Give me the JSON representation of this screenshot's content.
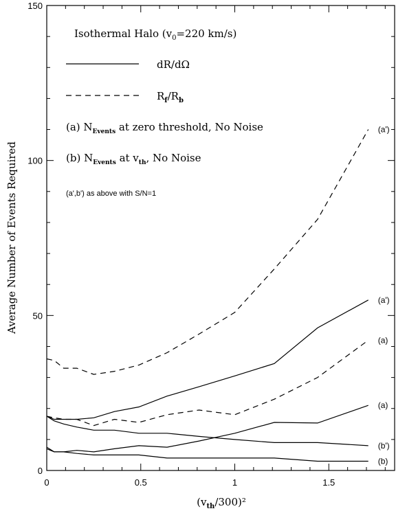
{
  "chart_data": {
    "type": "line",
    "title": "",
    "xlabel": "(v_th/300)²",
    "ylabel": "Average Number of Events Required",
    "xlim": [
      0,
      1.85
    ],
    "ylim": [
      0,
      150
    ],
    "x_ticks": [
      {
        "value": 0,
        "label": "0"
      },
      {
        "value": 0.5,
        "label": "0.5"
      },
      {
        "value": 1,
        "label": "1"
      },
      {
        "value": 1.5,
        "label": "1.5"
      }
    ],
    "y_ticks": [
      {
        "value": 0,
        "label": "0"
      },
      {
        "value": 50,
        "label": "50"
      },
      {
        "value": 100,
        "label": "100"
      },
      {
        "value": 150,
        "label": "150"
      }
    ],
    "legend": {
      "placement": "top-left",
      "heading": "Isothermal Halo (v0=220 km/s)",
      "solid_label": "dR/dΩ",
      "dashed_label": "Rf/Rb",
      "note_a": "(a) NEvents at zero threshold, No Noise",
      "note_b": "(b) NEvents at vth, No Noise",
      "note_prime": "(a',b') as above with S/N=1"
    },
    "series": [
      {
        "label": "(a')",
        "style": "dashed",
        "x": [
          0,
          0.04,
          0.09,
          0.16,
          0.25,
          0.36,
          0.49,
          0.64,
          0.81,
          1.0,
          1.21,
          1.44,
          1.71
        ],
        "y": [
          36,
          35.5,
          33,
          33,
          31,
          32,
          34,
          38,
          44,
          51,
          65,
          81,
          110
        ]
      },
      {
        "label": "(a)",
        "style": "dashed",
        "x": [
          0,
          0.04,
          0.09,
          0.16,
          0.25,
          0.36,
          0.49,
          0.64,
          0.81,
          1.0,
          1.21,
          1.44,
          1.71
        ],
        "y": [
          17.5,
          17,
          16.5,
          16.5,
          14.5,
          16.5,
          15.5,
          18,
          19.5,
          18,
          23,
          30,
          42
        ]
      },
      {
        "label": "(a')",
        "style": "solid",
        "x": [
          0,
          0.04,
          0.09,
          0.16,
          0.25,
          0.36,
          0.49,
          0.64,
          0.81,
          1.0,
          1.21,
          1.44,
          1.71
        ],
        "y": [
          17.5,
          16.5,
          16.5,
          16.5,
          17,
          19,
          20.5,
          24,
          27,
          30.5,
          34.5,
          46,
          55
        ]
      },
      {
        "label": "(a)",
        "style": "solid",
        "x": [
          0,
          0.04,
          0.09,
          0.16,
          0.25,
          0.36,
          0.49,
          0.64,
          0.81,
          1.0,
          1.21,
          1.44,
          1.71
        ],
        "y": [
          7,
          6,
          6,
          6.5,
          6,
          7,
          8,
          7.5,
          9.5,
          12,
          15.5,
          15.3,
          21
        ]
      },
      {
        "label": "(b')",
        "style": "solid",
        "x": [
          0,
          0.04,
          0.09,
          0.16,
          0.25,
          0.36,
          0.49,
          0.64,
          0.81,
          1.0,
          1.21,
          1.44,
          1.71
        ],
        "y": [
          17.5,
          16,
          15,
          14,
          13,
          13,
          12,
          12,
          11,
          10,
          9,
          9,
          8
        ]
      },
      {
        "label": "(b)",
        "style": "solid",
        "x": [
          0,
          0.04,
          0.09,
          0.16,
          0.25,
          0.36,
          0.49,
          0.64,
          0.81,
          1.0,
          1.21,
          1.44,
          1.71
        ],
        "y": [
          7.5,
          6,
          6,
          5.5,
          5,
          5,
          5,
          4,
          4,
          4,
          4,
          3,
          3
        ]
      }
    ],
    "grid": false
  }
}
